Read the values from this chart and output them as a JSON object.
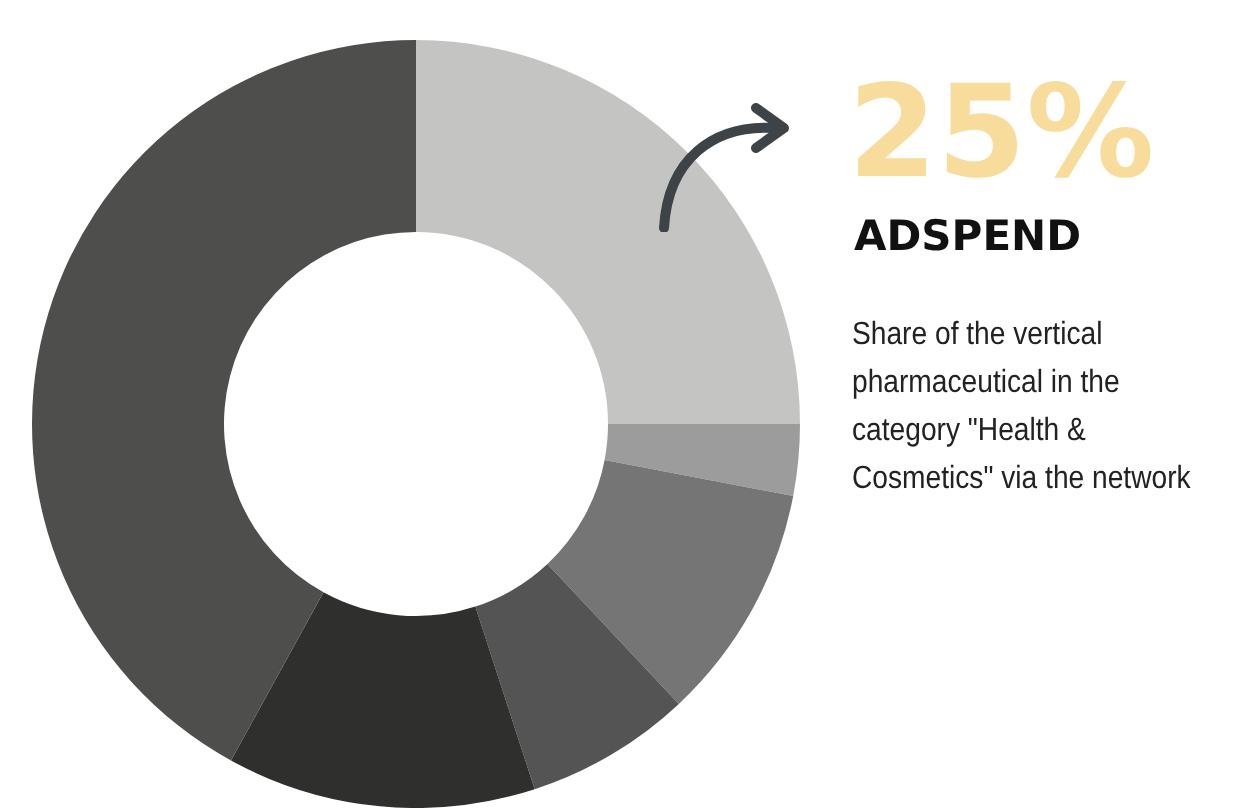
{
  "chart_data": {
    "type": "donut",
    "title": "ADSPEND",
    "annotations": [
      "Share of the vertical pharmaceutical in the category \"Health & Cosmetics\" via the network"
    ],
    "categories": [
      null,
      null,
      null,
      null,
      null,
      null
    ],
    "values": [
      25,
      3,
      10,
      7,
      13,
      42
    ],
    "value_labels": [
      "25%",
      null,
      null,
      null,
      null,
      null
    ],
    "colors": [
      "#c4c4c2",
      "#9c9c9c",
      "#757575",
      "#545454",
      "#2f302e",
      "#4e4f4d"
    ],
    "legend": false
  }
}
